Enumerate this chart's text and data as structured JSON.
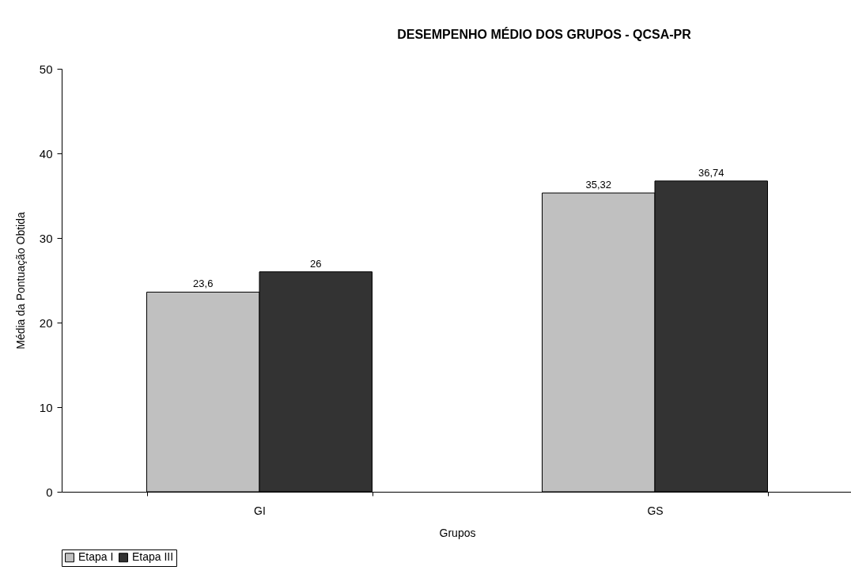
{
  "chart_data": {
    "type": "bar",
    "title": "DESEMPENHO MÉDIO DOS GRUPOS - QCSA-PR",
    "xlabel": "Grupos",
    "ylabel": "Média da Pontuação Obtida",
    "categories": [
      "GI",
      "GS"
    ],
    "series": [
      {
        "name": "Etapa I",
        "color": "#c0c0c0",
        "values": [
          23.6,
          35.32
        ],
        "value_labels": [
          "23,6",
          "35,32"
        ]
      },
      {
        "name": "Etapa III",
        "color": "#333333",
        "values": [
          26,
          36.74
        ],
        "value_labels": [
          "26",
          "36,74"
        ]
      }
    ],
    "ylim": [
      0,
      50
    ],
    "yticks": [
      0,
      10,
      20,
      30,
      40,
      50
    ],
    "grid": false,
    "legend": "bottom"
  }
}
